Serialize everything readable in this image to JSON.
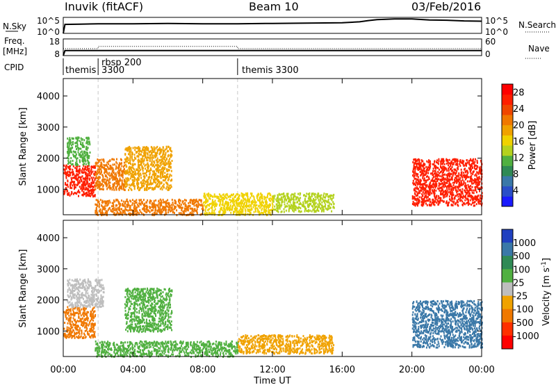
{
  "header": {
    "title": "Inuvik (fitACF)",
    "beam": "Beam 10",
    "date": "03/Feb/2016"
  },
  "labels": {
    "nsky": "N.Sky",
    "freq": "Freq.",
    "mhz": "[MHz]",
    "cpid": "CPID",
    "nsearch": "N.Search",
    "nave": "Nave",
    "slant_range": "Slant Range [km]",
    "time_ut": "Time UT",
    "power": "Power [dB]",
    "velocity_prefix": "Velocity",
    "velocity_unit": "[m s",
    "velocity_exp": "-1",
    "velocity_close": "]"
  },
  "colors": {
    "axis": "#000000",
    "grid_dash": "#c8c8c8",
    "ground_scatter": "#bebebe"
  },
  "chart_data": [
    {
      "type": "line",
      "panel": "N.Sky / N.Search",
      "ylabel_left": "N.Sky",
      "ylabel_right": "N.Search",
      "yticks_left": [
        "10^5",
        "10^0"
      ],
      "yticks_right": [
        "10^5",
        "10^0"
      ],
      "x_hours": [
        0,
        0.1,
        1,
        2,
        4,
        6,
        8,
        10,
        12,
        14,
        16,
        17,
        17.5,
        18,
        19,
        20,
        21,
        22,
        23,
        24
      ],
      "nsky_log10": [
        0,
        2.8,
        2.9,
        3.0,
        3.0,
        3.1,
        3.0,
        3.0,
        3.1,
        3.2,
        3.3,
        3.6,
        4.0,
        4.3,
        4.5,
        4.5,
        4.2,
        4.1,
        3.9,
        3.8
      ]
    },
    {
      "type": "line",
      "panel": "Freq / Nave",
      "ylabel_left": "Freq. [MHz]",
      "ylabel_right": "Nave",
      "ylim_left": [
        8,
        18
      ],
      "ylim_right": [
        0,
        60
      ],
      "yticks_left": [
        "18",
        "8"
      ],
      "yticks_right": [
        "60",
        "0"
      ],
      "x_hours": [
        0,
        0.1,
        2,
        10,
        24
      ],
      "freq_mhz": [
        8,
        11,
        11,
        11,
        11
      ],
      "nave_x": [
        0,
        2,
        2,
        10,
        10,
        24
      ],
      "nave": [
        25,
        25,
        33,
        33,
        25,
        25
      ]
    },
    {
      "type": "table",
      "panel": "CPID",
      "ylabel": "CPID",
      "segments": [
        {
          "start_hour": 0,
          "label": "themis"
        },
        {
          "start_hour": 2,
          "label": "rbsp 200"
        },
        {
          "start_hour": 2,
          "label": "3300"
        },
        {
          "start_hour": 10,
          "label": "themis 3300"
        }
      ]
    },
    {
      "type": "heatmap",
      "panel": "Power",
      "ylabel": "Slant Range [km]",
      "ylim": [
        180,
        4560
      ],
      "yticks": [
        1000,
        2000,
        3000,
        4000
      ],
      "colorbar_label": "Power [dB]",
      "colorbar_ticks": [
        4,
        8,
        12,
        16,
        20,
        24,
        28
      ],
      "colorbar_range": [
        0,
        30
      ],
      "colorbar_colors": [
        "#1a1aff",
        "#2a4ec8",
        "#3a78a8",
        "#2f8a55",
        "#50b040",
        "#b4d21e",
        "#f0d200",
        "#f0a200",
        "#f07800",
        "#f04600",
        "#ff1e00",
        "#ff0000"
      ],
      "regions": [
        {
          "t": [
            0,
            1.8
          ],
          "r": [
            800,
            1800
          ],
          "v": 26
        },
        {
          "t": [
            0.2,
            1.5
          ],
          "r": [
            1800,
            2700
          ],
          "v": 12
        },
        {
          "t": [
            1.8,
            3.5
          ],
          "r": [
            1000,
            2000
          ],
          "v": 20
        },
        {
          "t": [
            3.5,
            6.2
          ],
          "r": [
            1000,
            2400
          ],
          "v": 18
        },
        {
          "t": [
            1.8,
            8
          ],
          "r": [
            200,
            700
          ],
          "v": 22
        },
        {
          "t": [
            8,
            12
          ],
          "r": [
            200,
            900
          ],
          "v": 16
        },
        {
          "t": [
            12,
            15.5
          ],
          "r": [
            300,
            900
          ],
          "v": 14
        },
        {
          "t": [
            20,
            24
          ],
          "r": [
            500,
            2000
          ],
          "v": 26
        }
      ]
    },
    {
      "type": "heatmap",
      "panel": "Velocity",
      "ylabel": "Slant Range [km]",
      "xlabel": "Time UT",
      "ylim": [
        180,
        4560
      ],
      "yticks": [
        1000,
        2000,
        3000,
        4000
      ],
      "xticks": [
        "00:00",
        "04:00",
        "08:00",
        "12:00",
        "16:00",
        "20:00",
        "00:00"
      ],
      "colorbar_label": "Velocity [m s^-1]",
      "colorbar_ticks": [
        "1000",
        "500",
        "100",
        "25",
        "-25",
        "-100",
        "-500",
        "-1000"
      ],
      "colorbar_colors": [
        "#2040c0",
        "#3a78a8",
        "#2f8a55",
        "#50b040",
        "#bebebe",
        "#f0a200",
        "#f07800",
        "#ff3000",
        "#ff0000"
      ],
      "regions": [
        {
          "t": [
            0,
            1.8
          ],
          "r": [
            800,
            1800
          ],
          "v": -200
        },
        {
          "t": [
            0.2,
            2.3
          ],
          "r": [
            1800,
            2700
          ],
          "v": 0
        },
        {
          "t": [
            3.5,
            6.2
          ],
          "r": [
            1000,
            2400
          ],
          "v": 80
        },
        {
          "t": [
            1.8,
            10
          ],
          "r": [
            200,
            700
          ],
          "v": 40
        },
        {
          "t": [
            10,
            15.5
          ],
          "r": [
            300,
            900
          ],
          "v": -60
        },
        {
          "t": [
            20,
            24
          ],
          "r": [
            500,
            2000
          ],
          "v": 300
        }
      ]
    }
  ]
}
